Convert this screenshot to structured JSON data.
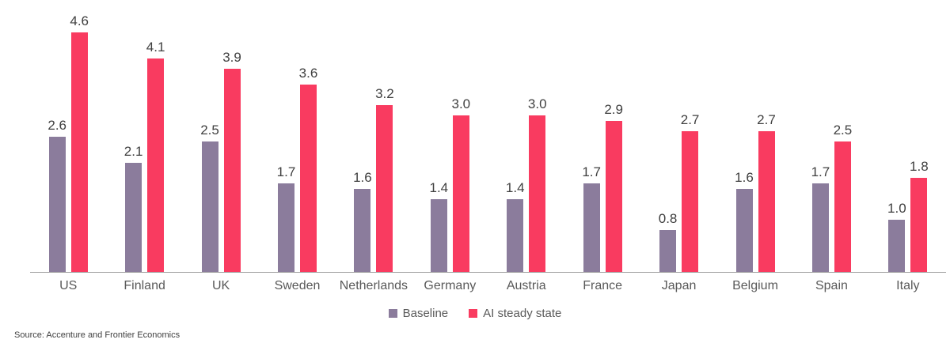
{
  "chart_data": {
    "type": "bar",
    "categories": [
      "US",
      "Finland",
      "UK",
      "Sweden",
      "Netherlands",
      "Germany",
      "Austria",
      "France",
      "Japan",
      "Belgium",
      "Spain",
      "Italy"
    ],
    "series": [
      {
        "name": "Baseline",
        "color": "#8b7c9c",
        "values": [
          2.6,
          2.1,
          2.5,
          1.7,
          1.6,
          1.4,
          1.4,
          1.7,
          0.8,
          1.6,
          1.7,
          1.0
        ]
      },
      {
        "name": "AI steady state",
        "color": "#f93b60",
        "values": [
          4.6,
          4.1,
          3.9,
          3.6,
          3.2,
          3.0,
          3.0,
          2.9,
          2.7,
          2.7,
          2.5,
          1.8
        ]
      }
    ],
    "title": "",
    "xlabel": "",
    "ylabel": "",
    "ylim": [
      0,
      4.6
    ],
    "grid": false,
    "legend_position": "bottom",
    "value_labels": true,
    "value_label_decimals": 1
  },
  "colors": {
    "baseline": "#8b7c9c",
    "ai_steady_state": "#f93b60",
    "axis_line": "#9e9e9e",
    "value_label": "#404040",
    "category_label": "#595959"
  },
  "source": {
    "label": "Source: Accenture and Frontier Economics"
  }
}
